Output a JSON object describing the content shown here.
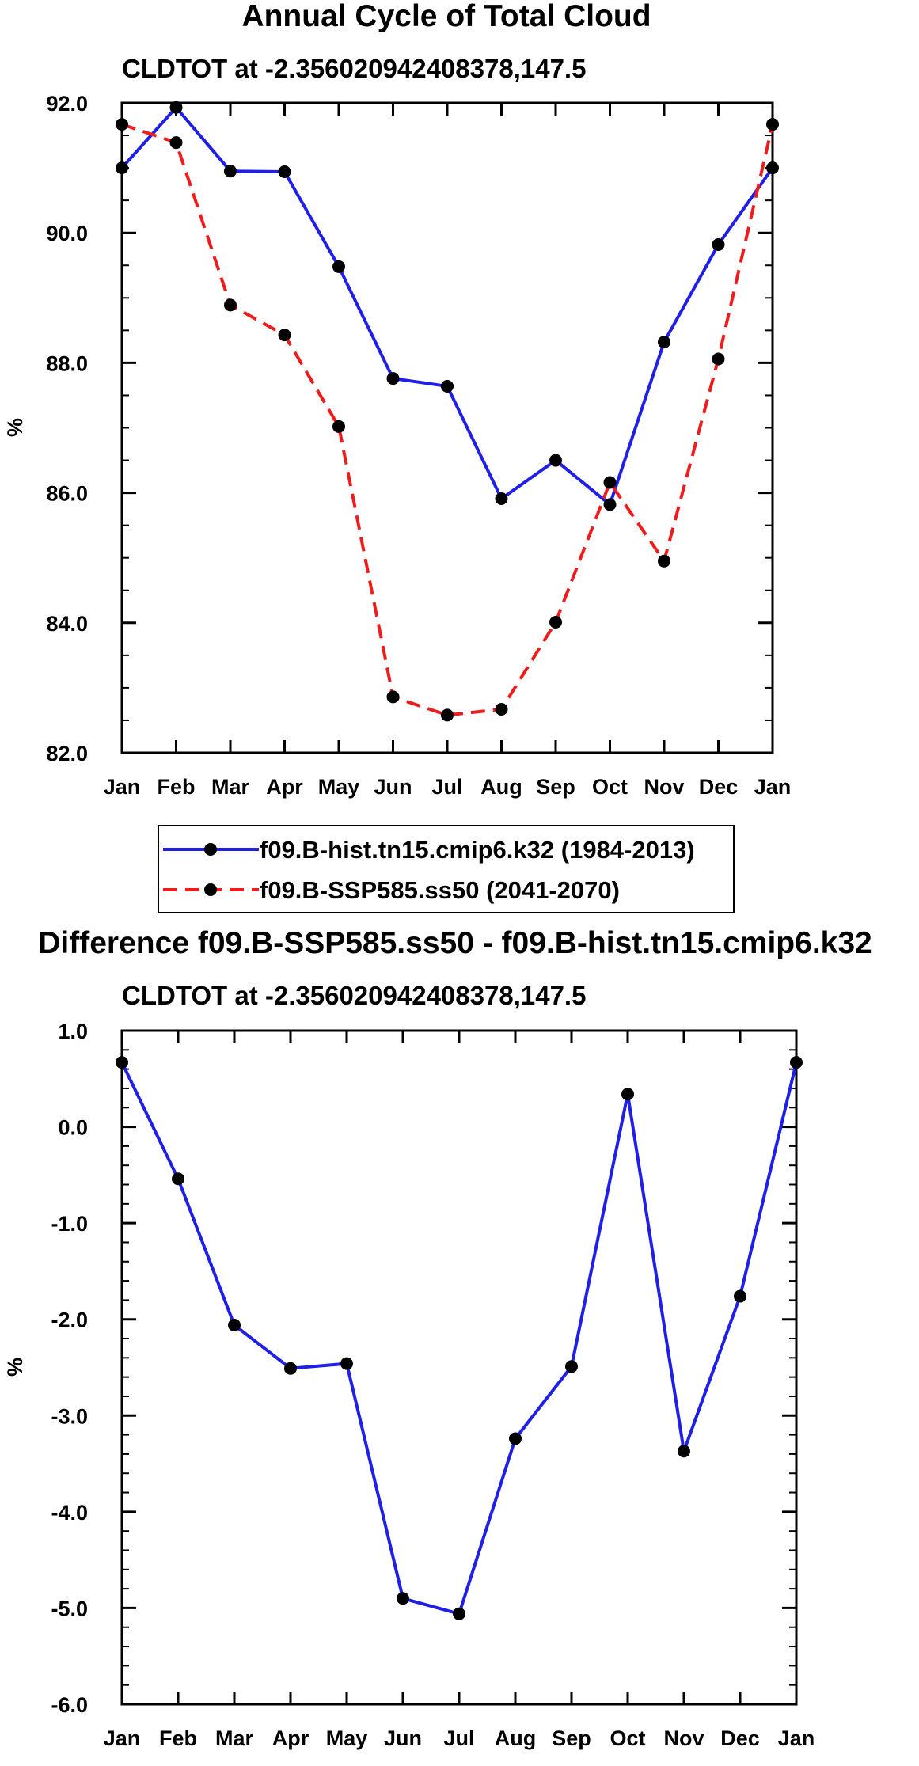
{
  "chart_data": [
    {
      "type": "line",
      "title": "Annual Cycle of Total Cloud",
      "subtitle": "CLDTOT at -2.356020942408378,147.5",
      "xlabel": "",
      "ylabel": "%",
      "categories": [
        "Jan",
        "Feb",
        "Mar",
        "Apr",
        "May",
        "Jun",
        "Jul",
        "Aug",
        "Sep",
        "Oct",
        "Nov",
        "Dec",
        "Jan"
      ],
      "ylim": [
        82.0,
        92.0
      ],
      "yticks": [
        "82.0",
        "84.0",
        "86.0",
        "88.0",
        "90.0",
        "92.0"
      ],
      "grid": false,
      "legend_position": "bottom-center",
      "series": [
        {
          "name": "f09.B-hist.tn15.cmip6.k32 (1984-2013)",
          "color": "#1f1fe6",
          "dash": "solid",
          "values": [
            91.0,
            91.93,
            90.95,
            90.94,
            89.48,
            87.76,
            87.64,
            85.91,
            86.5,
            85.82,
            88.32,
            89.82,
            91.0
          ]
        },
        {
          "name": "f09.B-SSP585.ss50 (2041-2070)",
          "color": "#ee1c1c",
          "dash": "dashed",
          "values": [
            91.67,
            91.39,
            88.89,
            88.43,
            87.02,
            82.86,
            82.58,
            82.67,
            84.01,
            86.16,
            84.95,
            88.06,
            91.67
          ]
        }
      ]
    },
    {
      "type": "line",
      "title": "Difference f09.B-SSP585.ss50 - f09.B-hist.tn15.cmip6.k32",
      "subtitle": "CLDTOT at -2.356020942408378,147.5",
      "xlabel": "",
      "ylabel": "%",
      "categories": [
        "Jan",
        "Feb",
        "Mar",
        "Apr",
        "May",
        "Jun",
        "Jul",
        "Aug",
        "Sep",
        "Oct",
        "Nov",
        "Dec",
        "Jan"
      ],
      "ylim": [
        -6.0,
        1.0
      ],
      "yticks": [
        "-6.0",
        "-5.0",
        "-4.0",
        "-3.0",
        "-2.0",
        "-1.0",
        "0.0",
        "1.0"
      ],
      "grid": false,
      "series": [
        {
          "name": "difference",
          "color": "#1f1fe6",
          "dash": "solid",
          "values": [
            0.67,
            -0.54,
            -2.06,
            -2.51,
            -2.46,
            -4.9,
            -5.06,
            -3.24,
            -2.49,
            0.34,
            -3.37,
            -1.76,
            0.67
          ]
        }
      ]
    }
  ]
}
